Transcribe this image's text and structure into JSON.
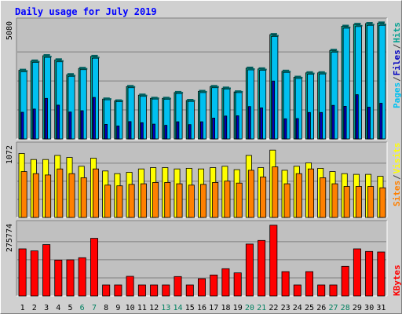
{
  "chart_data": {
    "type": "bar",
    "title": "Daily usage for July 2019",
    "categories": [
      "1",
      "2",
      "3",
      "4",
      "5",
      "6",
      "7",
      "8",
      "9",
      "10",
      "11",
      "12",
      "13",
      "14",
      "15",
      "16",
      "17",
      "18",
      "19",
      "20",
      "21",
      "22",
      "23",
      "24",
      "25",
      "26",
      "27",
      "28",
      "29",
      "30",
      "31"
    ],
    "weekend_days": [
      "6",
      "7",
      "13",
      "14",
      "20",
      "21",
      "27",
      "28"
    ],
    "panels": [
      {
        "id": "hits",
        "ymax": 5080,
        "ymax_label": "5080",
        "series": [
          {
            "name": "Hits",
            "color": "#00a090",
            "values": [
              2960,
              3360,
              3590,
              3410,
              2770,
              3040,
              3560,
              1720,
              1640,
              2260,
              1890,
              1750,
              1750,
              2000,
              1660,
              2050,
              2260,
              2190,
              2030,
              3050,
              3020,
              4500,
              2920,
              2660,
              2850,
              2850,
              3820,
              4860,
              4940,
              4980,
              5000
            ]
          },
          {
            "name": "Files",
            "color": "#00c0f0",
            "values": [
              2900,
              3300,
              3520,
              3330,
              2700,
              2990,
              3480,
              1690,
              1610,
              2210,
              1840,
              1720,
              1710,
              1960,
              1620,
              2000,
              2210,
              2150,
              2000,
              2980,
              2960,
              4420,
              2870,
              2610,
              2790,
              2800,
              3740,
              4780,
              4850,
              4900,
              4900
            ]
          },
          {
            "name": "Pages",
            "color": "#0000c0",
            "values": [
              1150,
              1290,
              1750,
              1460,
              1160,
              1220,
              1790,
              630,
              560,
              750,
              700,
              640,
              590,
              740,
              620,
              740,
              900,
              990,
              1000,
              1400,
              1340,
              2500,
              870,
              880,
              1140,
              1140,
              1450,
              1410,
              1910,
              1370,
              1540
            ]
          }
        ]
      },
      {
        "id": "visits",
        "ymax": 1072,
        "ymax_label": "1072",
        "series": [
          {
            "name": "Visits",
            "color": "#ffff00",
            "values": [
              950,
              860,
              860,
              920,
              890,
              760,
              880,
              690,
              650,
              670,
              720,
              740,
              740,
              720,
              730,
              720,
              740,
              760,
              710,
              920,
              740,
              1000,
              700,
              760,
              810,
              730,
              680,
              650,
              640,
              640,
              610
            ]
          },
          {
            "name": "Sites",
            "color": "#ff8000",
            "values": [
              680,
              650,
              630,
              720,
              650,
              590,
              720,
              480,
              470,
              490,
              500,
              520,
              520,
              500,
              480,
              490,
              520,
              540,
              510,
              700,
              600,
              750,
              500,
              650,
              720,
              590,
              500,
              460,
              460,
              460,
              440
            ]
          }
        ]
      },
      {
        "id": "kbytes",
        "ymax": 275774,
        "ymax_label": "275774",
        "series": [
          {
            "name": "KBytes",
            "color": "#ff0000",
            "values": [
              180000,
              172000,
              196000,
              137000,
              138000,
              146000,
              220000,
              42000,
              42000,
              75000,
              42000,
              42000,
              42000,
              74000,
              42000,
              66000,
              80000,
              104000,
              88000,
              198000,
              212000,
              270000,
              93000,
              42000,
              93000,
              42000,
              42000,
              113000,
              180000,
              170000,
              168000
            ]
          }
        ]
      }
    ],
    "right_labels": [
      {
        "text": "Pages",
        "color": "#00c0f0"
      },
      {
        "text": "/",
        "color": "#404040"
      },
      {
        "text": "Files",
        "color": "#0000c0"
      },
      {
        "text": "/",
        "color": "#404040"
      },
      {
        "text": "Hits",
        "color": "#00a090"
      },
      {
        "text": "Sites",
        "color": "#ff8000"
      },
      {
        "text": "/",
        "color": "#404040"
      },
      {
        "text": "Visits",
        "color": "#ffff00"
      },
      {
        "text": "KBytes",
        "color": "#ff0000"
      }
    ],
    "colors": {
      "title": "#0000ff",
      "weekday_label": "#000000",
      "weekend_label": "#008060",
      "panel_bg": "#c0c0c0",
      "grid": "#808080"
    }
  }
}
